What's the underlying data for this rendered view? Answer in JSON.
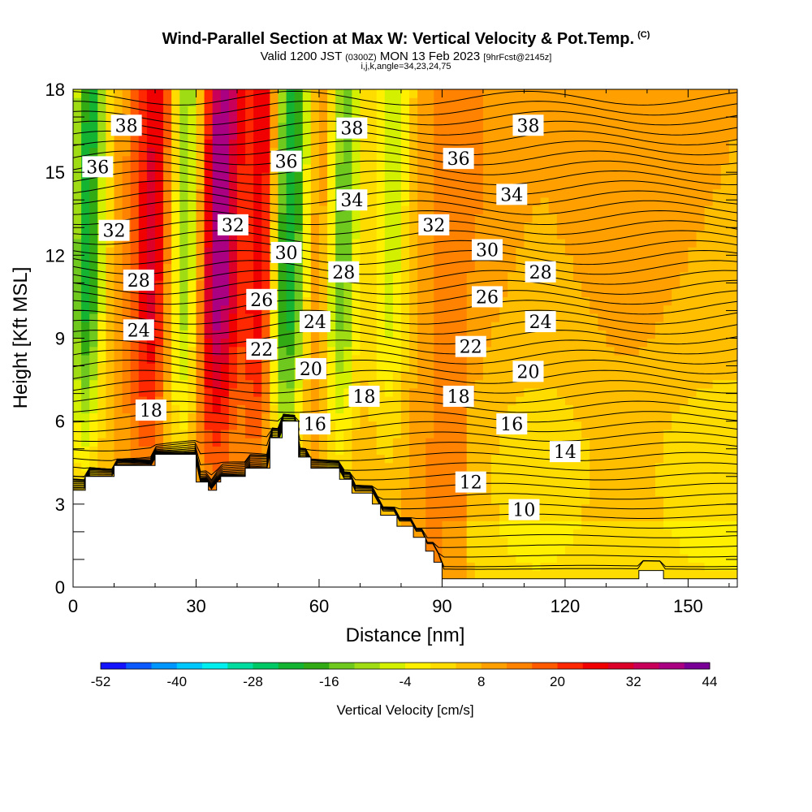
{
  "header": {
    "title": "Wind-Parallel Section at Max W: Vertical Velocity & Pot.Temp.",
    "copyright": "(C)",
    "valid_a": "Valid 1200 JST",
    "valid_utc": "(0300Z)",
    "valid_b": "MON 13 Feb 2023",
    "forecast": "[9hrFcst@2145z]",
    "indices": "i,j,k,angle=34,23,24,75"
  },
  "chart_data": {
    "type": "heatmap",
    "title": "Wind-Parallel Section at Max W: Vertical Velocity & Pot.Temp.",
    "xlabel": "Distance [nm]",
    "ylabel": "Height [Kft MSL]",
    "xlim": [
      0,
      162
    ],
    "ylim": [
      0,
      18
    ],
    "xticks": [
      "0",
      "30",
      "60",
      "90",
      "120",
      "150"
    ],
    "yticks": [
      "0",
      "3",
      "6",
      "9",
      "12",
      "15",
      "18"
    ],
    "colorbar": {
      "label": "Vertical Velocity [cm/s]",
      "ticks": [
        "-52",
        "-40",
        "-28",
        "-16",
        "-4",
        "8",
        "20",
        "32",
        "44"
      ],
      "colors": [
        "#1414ff",
        "#0a5aff",
        "#0096ff",
        "#00c8ff",
        "#00eeee",
        "#00dca0",
        "#00c864",
        "#14b432",
        "#32aa14",
        "#6ec81e",
        "#a0dc14",
        "#d2f000",
        "#fff000",
        "#ffdc00",
        "#ffbe00",
        "#ffa000",
        "#ff8200",
        "#ff5a00",
        "#ff2800",
        "#f00000",
        "#dc0028",
        "#c8005a",
        "#aa0082",
        "#780096"
      ]
    },
    "terrain": {
      "distance_nm": [
        0,
        3,
        3,
        10,
        10,
        20,
        20,
        30,
        30,
        33,
        33,
        35,
        35,
        36,
        36,
        42,
        42,
        46,
        46,
        48,
        48,
        51,
        51,
        55,
        55,
        58,
        58,
        62,
        62,
        65,
        65,
        68,
        68,
        73,
        73,
        75,
        75,
        79,
        79,
        83,
        83,
        86,
        86,
        88,
        88,
        90,
        90,
        95,
        95,
        138,
        138,
        144,
        144,
        162
      ],
      "height_kft": [
        3.5,
        3.5,
        4,
        4,
        4.4,
        4.4,
        4.8,
        4.8,
        3.8,
        3.8,
        3.5,
        3.5,
        3.8,
        3.8,
        4.0,
        4.0,
        4.3,
        4.3,
        4.3,
        4.3,
        5.4,
        5.4,
        6.0,
        6.0,
        4.7,
        4.7,
        4.3,
        4.3,
        4.3,
        4.3,
        3.9,
        3.9,
        3.4,
        3.4,
        3.0,
        3.0,
        2.6,
        2.6,
        2.2,
        2.2,
        1.8,
        1.8,
        1.3,
        1.3,
        0.9,
        0.9,
        0.3,
        0.3,
        0.3,
        0.3,
        0.6,
        0.6,
        0.3,
        0.3
      ]
    },
    "updraft_bands": [
      {
        "center_nm": 20,
        "width_nm": 6,
        "peak_cms": 35
      },
      {
        "center_nm": 34,
        "width_nm": 6,
        "peak_cms": 45
      },
      {
        "center_nm": 46,
        "width_nm": 4,
        "peak_cms": 38
      },
      {
        "center_nm": 58,
        "width_nm": 5,
        "peak_cms": 22
      },
      {
        "center_nm": 93,
        "width_nm": 10,
        "peak_cms": 15
      },
      {
        "center_nm": 135,
        "width_nm": 12,
        "peak_cms": 12
      }
    ],
    "downdraft_bands": [
      {
        "center_nm": 3,
        "width_nm": 4,
        "peak_cms": -22
      },
      {
        "center_nm": 27,
        "width_nm": 6,
        "peak_cms": -26
      },
      {
        "center_nm": 52,
        "width_nm": 6,
        "peak_cms": -30
      },
      {
        "center_nm": 65,
        "width_nm": 4,
        "peak_cms": -16
      },
      {
        "center_nm": 77,
        "width_nm": 5,
        "peak_cms": -6
      }
    ],
    "background_cms": 8,
    "theta_contour_levels": [
      10,
      12,
      14,
      16,
      18,
      20,
      22,
      24,
      26,
      28,
      30,
      32,
      34,
      36,
      38
    ],
    "theta_labels": [
      {
        "text": "38",
        "x": 13,
        "y": 16.7
      },
      {
        "text": "38",
        "x": 68,
        "y": 16.6
      },
      {
        "text": "38",
        "x": 111,
        "y": 16.7
      },
      {
        "text": "36",
        "x": 6,
        "y": 15.2
      },
      {
        "text": "36",
        "x": 52,
        "y": 15.4
      },
      {
        "text": "36",
        "x": 94,
        "y": 15.5
      },
      {
        "text": "34",
        "x": 68,
        "y": 14.0
      },
      {
        "text": "34",
        "x": 107,
        "y": 14.2
      },
      {
        "text": "32",
        "x": 10,
        "y": 12.9
      },
      {
        "text": "32",
        "x": 39,
        "y": 13.1
      },
      {
        "text": "32",
        "x": 88,
        "y": 13.1
      },
      {
        "text": "30",
        "x": 52,
        "y": 12.1
      },
      {
        "text": "30",
        "x": 101,
        "y": 12.2
      },
      {
        "text": "28",
        "x": 16,
        "y": 11.1
      },
      {
        "text": "28",
        "x": 66,
        "y": 11.4
      },
      {
        "text": "28",
        "x": 114,
        "y": 11.4
      },
      {
        "text": "26",
        "x": 46,
        "y": 10.4
      },
      {
        "text": "26",
        "x": 101,
        "y": 10.5
      },
      {
        "text": "24",
        "x": 16,
        "y": 9.3
      },
      {
        "text": "24",
        "x": 59,
        "y": 9.6
      },
      {
        "text": "24",
        "x": 114,
        "y": 9.6
      },
      {
        "text": "22",
        "x": 46,
        "y": 8.6
      },
      {
        "text": "22",
        "x": 97,
        "y": 8.7
      },
      {
        "text": "20",
        "x": 58,
        "y": 7.9
      },
      {
        "text": "20",
        "x": 111,
        "y": 7.8
      },
      {
        "text": "18",
        "x": 19,
        "y": 6.4
      },
      {
        "text": "18",
        "x": 71,
        "y": 6.9
      },
      {
        "text": "18",
        "x": 94,
        "y": 6.9
      },
      {
        "text": "16",
        "x": 59,
        "y": 5.9
      },
      {
        "text": "16",
        "x": 107,
        "y": 5.9
      },
      {
        "text": "14",
        "x": 120,
        "y": 4.9
      },
      {
        "text": "12",
        "x": 97,
        "y": 3.8
      },
      {
        "text": "10",
        "x": 110,
        "y": 2.8
      }
    ]
  }
}
